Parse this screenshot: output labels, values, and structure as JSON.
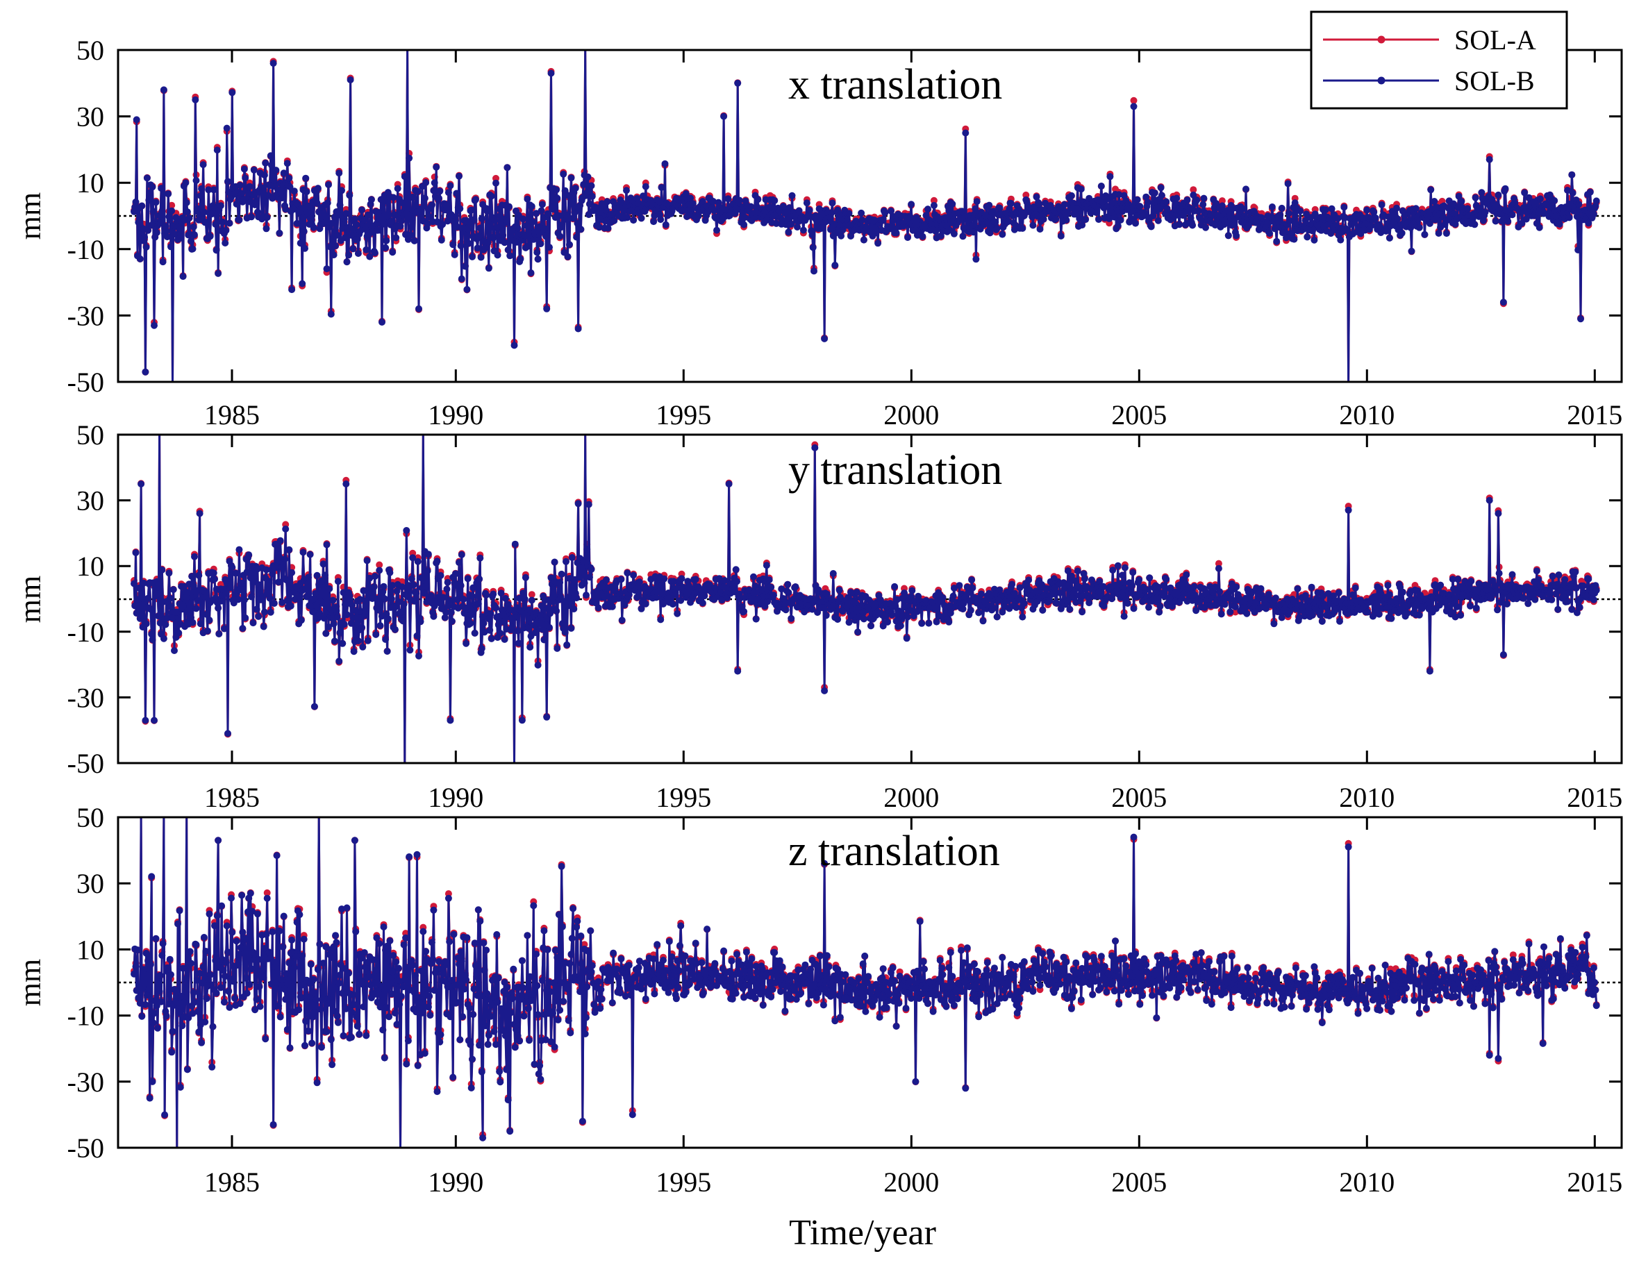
{
  "chart_data": [
    {
      "type": "line",
      "title": "x translation",
      "ylabel": "mm",
      "xlabel": "",
      "xlim": [
        1982.5,
        2015.5
      ],
      "ylim": [
        -50,
        50
      ],
      "xticks": [
        "1985",
        "1990",
        "1995",
        "2000",
        "2005",
        "2010",
        "2015"
      ],
      "yticks": [
        "50",
        "30",
        "10",
        "-10",
        "-30",
        "-50"
      ],
      "grid": false,
      "reference_line": 0,
      "series": [
        {
          "name": "SOL-A",
          "color": "#d11a3a",
          "noise_std": 10,
          "noise_std_late": 4.5
        },
        {
          "name": "SOL-B",
          "color": "#1a1a8c",
          "noise_std": 10,
          "noise_std_late": 4.5
        }
      ],
      "spikes": [
        [
          1982.9,
          29
        ],
        [
          1983.1,
          -47
        ],
        [
          1983.3,
          -33
        ],
        [
          1983.5,
          38
        ],
        [
          1983.7,
          -60
        ],
        [
          1984.2,
          35
        ],
        [
          1985.9,
          46
        ],
        [
          1987.6,
          41
        ],
        [
          1988.3,
          -32
        ],
        [
          1988.85,
          60
        ],
        [
          1989.1,
          -28
        ],
        [
          1991.2,
          -39
        ],
        [
          1991.9,
          -28
        ],
        [
          1992.0,
          43
        ],
        [
          1992.6,
          -34
        ],
        [
          1992.75,
          60
        ],
        [
          1995.8,
          30
        ],
        [
          1996.1,
          40
        ],
        [
          1998.0,
          -37
        ],
        [
          2001.1,
          25
        ],
        [
          2004.8,
          33
        ],
        [
          2009.5,
          -60
        ],
        [
          2012.6,
          17
        ],
        [
          2012.9,
          -26
        ],
        [
          2014.6,
          -31
        ]
      ]
    },
    {
      "type": "line",
      "title": "y translation",
      "ylabel": "mm",
      "xlabel": "",
      "xlim": [
        1982.5,
        2015.5
      ],
      "ylim": [
        -50,
        50
      ],
      "xticks": [
        "1985",
        "1990",
        "1995",
        "2000",
        "2005",
        "2010",
        "2015"
      ],
      "yticks": [
        "50",
        "30",
        "10",
        "-10",
        "-30",
        "-50"
      ],
      "grid": false,
      "reference_line": 0,
      "series": [
        {
          "name": "SOL-A",
          "color": "#d11a3a",
          "noise_std": 11,
          "noise_std_late": 4.5
        },
        {
          "name": "SOL-B",
          "color": "#1a1a8c",
          "noise_std": 11,
          "noise_std_late": 4.5
        }
      ],
      "spikes": [
        [
          1983.0,
          35
        ],
        [
          1983.1,
          -37
        ],
        [
          1983.3,
          -37
        ],
        [
          1983.4,
          60
        ],
        [
          1984.3,
          26
        ],
        [
          1984.9,
          -41
        ],
        [
          1987.5,
          35
        ],
        [
          1988.8,
          -60
        ],
        [
          1989.2,
          60
        ],
        [
          1989.8,
          -37
        ],
        [
          1991.2,
          -60
        ],
        [
          1991.9,
          -36
        ],
        [
          1992.6,
          29
        ],
        [
          1992.75,
          60
        ],
        [
          1995.9,
          35
        ],
        [
          1996.1,
          -22
        ],
        [
          1997.8,
          46
        ],
        [
          1998.0,
          -28
        ],
        [
          2009.5,
          27
        ],
        [
          2011.3,
          -22
        ],
        [
          2012.6,
          30
        ],
        [
          2012.8,
          26
        ],
        [
          2012.9,
          -17
        ]
      ]
    },
    {
      "type": "line",
      "title": "z translation",
      "ylabel": "mm",
      "xlabel": "Time/year",
      "xlim": [
        1982.5,
        2015.5
      ],
      "ylim": [
        -50,
        50
      ],
      "xticks": [
        "1985",
        "1990",
        "1995",
        "2000",
        "2005",
        "2010",
        "2015"
      ],
      "yticks": [
        "50",
        "30",
        "10",
        "-10",
        "-30",
        "-50"
      ],
      "grid": false,
      "reference_line": 0,
      "series": [
        {
          "name": "SOL-A",
          "color": "#d11a3a",
          "noise_std": 20,
          "noise_std_late": 6.5
        },
        {
          "name": "SOL-B",
          "color": "#1a1a8c",
          "noise_std": 20,
          "noise_std_late": 6.5
        }
      ],
      "spikes": [
        [
          1983.0,
          60
        ],
        [
          1983.2,
          -35
        ],
        [
          1983.5,
          60
        ],
        [
          1983.8,
          -60
        ],
        [
          1984.0,
          60
        ],
        [
          1984.7,
          43
        ],
        [
          1985.9,
          -43
        ],
        [
          1986.9,
          60
        ],
        [
          1987.7,
          43
        ],
        [
          1988.7,
          -60
        ],
        [
          1989.5,
          -33
        ],
        [
          1990.5,
          -47
        ],
        [
          1991.1,
          -45
        ],
        [
          1992.7,
          -42
        ],
        [
          1993.8,
          -40
        ],
        [
          1998.0,
          36
        ],
        [
          2000.0,
          -30
        ],
        [
          2001.1,
          -32
        ],
        [
          2004.8,
          44
        ],
        [
          2009.5,
          41
        ],
        [
          2012.6,
          -22
        ],
        [
          2012.8,
          -23
        ]
      ]
    }
  ],
  "legend": {
    "entries": [
      "SOL-A",
      "SOL-B"
    ],
    "placement": "top-right"
  }
}
